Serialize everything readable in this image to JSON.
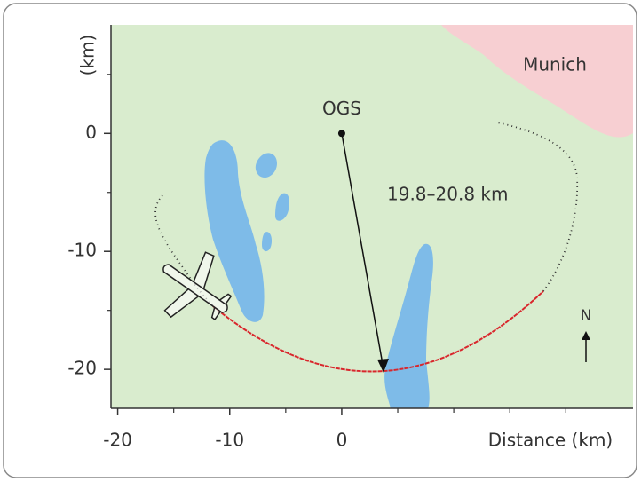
{
  "chart_data": {
    "type": "map",
    "y_label": "(km)",
    "x_label": "Distance (km)",
    "xlim": [
      -20.6,
      26
    ],
    "ylim": [
      -23.3,
      9.2
    ],
    "xticks": [
      -20,
      -10,
      0
    ],
    "yticks": [
      -20,
      -10,
      0
    ],
    "x_minor_ticks": [
      -15,
      -5,
      5,
      10,
      15,
      20
    ],
    "y_minor_ticks": [
      -15,
      -5,
      5
    ],
    "points": [
      {
        "label": "OGS",
        "x": 0,
        "y": 0
      }
    ],
    "annotations": [
      "Munich",
      "19.8–20.8 km",
      "N"
    ],
    "land_color": "#d9ecce",
    "water_color": "#7ebbe8",
    "city_color": "#f7cfd2",
    "path_color": "#d9262c"
  }
}
